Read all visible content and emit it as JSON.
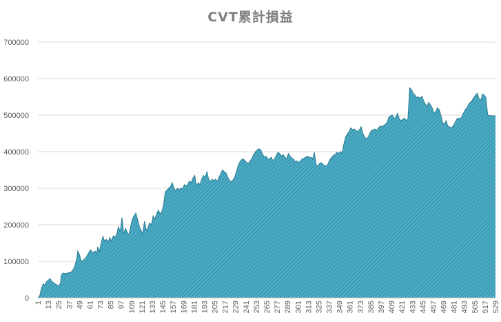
{
  "chart_data": {
    "type": "area",
    "title": "CVT累計損益",
    "xlabel": "",
    "ylabel": "",
    "ylim": [
      0,
      700000
    ],
    "yticks": [
      0,
      100000,
      200000,
      300000,
      400000,
      500000,
      600000,
      700000
    ],
    "xlim": [
      1,
      529
    ],
    "xticks": [
      1,
      13,
      25,
      37,
      49,
      61,
      73,
      85,
      97,
      109,
      121,
      133,
      145,
      157,
      169,
      181,
      193,
      205,
      217,
      229,
      241,
      253,
      265,
      277,
      289,
      301,
      313,
      325,
      337,
      349,
      361,
      373,
      385,
      397,
      409,
      421,
      433,
      445,
      457,
      469,
      481,
      493,
      505,
      517,
      529
    ],
    "grid": true,
    "legend": "none",
    "fill_color": "#4bacc6",
    "hatch_color": "#31859c",
    "series": [
      {
        "points": [
          [
            1,
            0
          ],
          [
            3,
            5000
          ],
          [
            5,
            25000
          ],
          [
            7,
            38000
          ],
          [
            9,
            35000
          ],
          [
            11,
            45000
          ],
          [
            13,
            48000
          ],
          [
            15,
            53000
          ],
          [
            17,
            45000
          ],
          [
            19,
            42000
          ],
          [
            21,
            38000
          ],
          [
            23,
            35000
          ],
          [
            25,
            33000
          ],
          [
            27,
            40000
          ],
          [
            28,
            62000
          ],
          [
            30,
            68000
          ],
          [
            33,
            66000
          ],
          [
            36,
            69000
          ],
          [
            39,
            70000
          ],
          [
            42,
            78000
          ],
          [
            44,
            90000
          ],
          [
            46,
            110000
          ],
          [
            47,
            128000
          ],
          [
            49,
            118000
          ],
          [
            51,
            100000
          ],
          [
            54,
            104000
          ],
          [
            57,
            112000
          ],
          [
            60,
            125000
          ],
          [
            62,
            132000
          ],
          [
            64,
            123000
          ],
          [
            67,
            128000
          ],
          [
            69,
            122000
          ],
          [
            70,
            140000
          ],
          [
            72,
            126000
          ],
          [
            74,
            150000
          ],
          [
            76,
            168000
          ],
          [
            78,
            155000
          ],
          [
            80,
            160000
          ],
          [
            82,
            153000
          ],
          [
            84,
            165000
          ],
          [
            86,
            155000
          ],
          [
            88,
            170000
          ],
          [
            90,
            165000
          ],
          [
            92,
            175000
          ],
          [
            94,
            195000
          ],
          [
            96,
            180000
          ],
          [
            98,
            220000
          ],
          [
            100,
            175000
          ],
          [
            102,
            190000
          ],
          [
            104,
            180000
          ],
          [
            106,
            172000
          ],
          [
            108,
            195000
          ],
          [
            110,
            215000
          ],
          [
            112,
            225000
          ],
          [
            114,
            232000
          ],
          [
            116,
            215000
          ],
          [
            118,
            195000
          ],
          [
            120,
            185000
          ],
          [
            122,
            175000
          ],
          [
            124,
            210000
          ],
          [
            126,
            185000
          ],
          [
            128,
            192000
          ],
          [
            130,
            205000
          ],
          [
            132,
            200000
          ],
          [
            134,
            225000
          ],
          [
            136,
            215000
          ],
          [
            138,
            230000
          ],
          [
            140,
            240000
          ],
          [
            142,
            230000
          ],
          [
            144,
            235000
          ],
          [
            146,
            255000
          ],
          [
            148,
            290000
          ],
          [
            150,
            295000
          ],
          [
            152,
            300000
          ],
          [
            154,
            305000
          ],
          [
            156,
            315000
          ],
          [
            158,
            300000
          ],
          [
            160,
            292000
          ],
          [
            162,
            300000
          ],
          [
            164,
            295000
          ],
          [
            166,
            300000
          ],
          [
            168,
            298000
          ],
          [
            170,
            310000
          ],
          [
            172,
            305000
          ],
          [
            174,
            312000
          ],
          [
            176,
            320000
          ],
          [
            178,
            315000
          ],
          [
            180,
            328000
          ],
          [
            182,
            335000
          ],
          [
            184,
            305000
          ],
          [
            186,
            315000
          ],
          [
            188,
            310000
          ],
          [
            190,
            325000
          ],
          [
            192,
            335000
          ],
          [
            194,
            330000
          ],
          [
            196,
            345000
          ],
          [
            198,
            325000
          ],
          [
            200,
            318000
          ],
          [
            202,
            325000
          ],
          [
            204,
            320000
          ],
          [
            206,
            325000
          ],
          [
            208,
            318000
          ],
          [
            210,
            330000
          ],
          [
            212,
            340000
          ],
          [
            214,
            350000
          ],
          [
            216,
            345000
          ],
          [
            218,
            342000
          ],
          [
            220,
            330000
          ],
          [
            222,
            322000
          ],
          [
            224,
            318000
          ],
          [
            226,
            322000
          ],
          [
            228,
            330000
          ],
          [
            230,
            345000
          ],
          [
            232,
            362000
          ],
          [
            234,
            372000
          ],
          [
            236,
            378000
          ],
          [
            238,
            380000
          ],
          [
            240,
            375000
          ],
          [
            242,
            370000
          ],
          [
            244,
            368000
          ],
          [
            246,
            375000
          ],
          [
            248,
            382000
          ],
          [
            250,
            392000
          ],
          [
            252,
            400000
          ],
          [
            254,
            405000
          ],
          [
            256,
            408000
          ],
          [
            258,
            405000
          ],
          [
            260,
            395000
          ],
          [
            262,
            385000
          ],
          [
            264,
            388000
          ],
          [
            266,
            382000
          ],
          [
            268,
            378000
          ],
          [
            270,
            385000
          ],
          [
            272,
            376000
          ],
          [
            274,
            380000
          ],
          [
            276,
            390000
          ],
          [
            278,
            398000
          ],
          [
            280,
            395000
          ],
          [
            282,
            388000
          ],
          [
            284,
            392000
          ],
          [
            286,
            385000
          ],
          [
            288,
            380000
          ],
          [
            290,
            395000
          ],
          [
            292,
            388000
          ],
          [
            294,
            382000
          ],
          [
            296,
            380000
          ],
          [
            298,
            372000
          ],
          [
            300,
            375000
          ],
          [
            302,
            370000
          ],
          [
            304,
            375000
          ],
          [
            306,
            380000
          ],
          [
            308,
            382000
          ],
          [
            310,
            385000
          ],
          [
            312,
            388000
          ],
          [
            314,
            384000
          ],
          [
            316,
            385000
          ],
          [
            318,
            380000
          ],
          [
            320,
            398000
          ],
          [
            322,
            365000
          ],
          [
            324,
            360000
          ],
          [
            326,
            368000
          ],
          [
            328,
            370000
          ],
          [
            330,
            365000
          ],
          [
            332,
            362000
          ],
          [
            334,
            360000
          ],
          [
            336,
            368000
          ],
          [
            338,
            378000
          ],
          [
            340,
            385000
          ],
          [
            342,
            390000
          ],
          [
            344,
            392000
          ],
          [
            346,
            398000
          ],
          [
            348,
            395000
          ],
          [
            350,
            400000
          ],
          [
            352,
            398000
          ],
          [
            354,
            420000
          ],
          [
            356,
            440000
          ],
          [
            358,
            448000
          ],
          [
            360,
            455000
          ],
          [
            362,
            465000
          ],
          [
            364,
            460000
          ],
          [
            366,
            462000
          ],
          [
            368,
            458000
          ],
          [
            370,
            455000
          ],
          [
            372,
            460000
          ],
          [
            374,
            468000
          ],
          [
            376,
            450000
          ],
          [
            378,
            440000
          ],
          [
            380,
            435000
          ],
          [
            382,
            440000
          ],
          [
            384,
            450000
          ],
          [
            386,
            458000
          ],
          [
            388,
            460000
          ],
          [
            390,
            462000
          ],
          [
            392,
            458000
          ],
          [
            394,
            465000
          ],
          [
            396,
            470000
          ],
          [
            398,
            468000
          ],
          [
            400,
            472000
          ],
          [
            402,
            475000
          ],
          [
            404,
            480000
          ],
          [
            406,
            495000
          ],
          [
            408,
            498000
          ],
          [
            410,
            500000
          ],
          [
            412,
            490000
          ],
          [
            414,
            495000
          ],
          [
            416,
            505000
          ],
          [
            418,
            490000
          ],
          [
            420,
            485000
          ],
          [
            422,
            488000
          ],
          [
            424,
            492000
          ],
          [
            426,
            485000
          ],
          [
            428,
            490000
          ],
          [
            430,
            575000
          ],
          [
            432,
            570000
          ],
          [
            434,
            560000
          ],
          [
            436,
            555000
          ],
          [
            438,
            548000
          ],
          [
            440,
            550000
          ],
          [
            442,
            545000
          ],
          [
            444,
            552000
          ],
          [
            446,
            540000
          ],
          [
            448,
            530000
          ],
          [
            450,
            525000
          ],
          [
            452,
            535000
          ],
          [
            454,
            528000
          ],
          [
            456,
            520000
          ],
          [
            458,
            505000
          ],
          [
            460,
            510000
          ],
          [
            462,
            520000
          ],
          [
            464,
            515000
          ],
          [
            466,
            500000
          ],
          [
            468,
            480000
          ],
          [
            470,
            475000
          ],
          [
            472,
            485000
          ],
          [
            474,
            470000
          ],
          [
            476,
            468000
          ],
          [
            478,
            465000
          ],
          [
            480,
            470000
          ],
          [
            482,
            478000
          ],
          [
            484,
            488000
          ],
          [
            486,
            492000
          ],
          [
            488,
            490000
          ],
          [
            490,
            495000
          ],
          [
            492,
            505000
          ],
          [
            494,
            515000
          ],
          [
            496,
            520000
          ],
          [
            498,
            530000
          ],
          [
            500,
            535000
          ],
          [
            502,
            540000
          ],
          [
            504,
            548000
          ],
          [
            506,
            555000
          ],
          [
            508,
            560000
          ],
          [
            510,
            545000
          ],
          [
            512,
            540000
          ],
          [
            514,
            558000
          ],
          [
            516,
            555000
          ],
          [
            518,
            548000
          ],
          [
            520,
            500000
          ],
          [
            524,
            498000
          ],
          [
            529,
            498000
          ]
        ]
      }
    ]
  }
}
